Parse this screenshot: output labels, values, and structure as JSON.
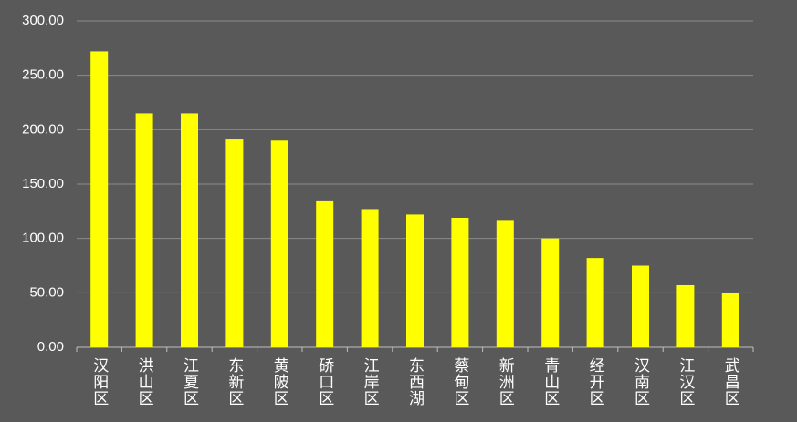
{
  "chart_data": {
    "type": "bar",
    "categories": [
      "汉阳区",
      "洪山区",
      "江夏区",
      "东新区",
      "黄陂区",
      "硚口区",
      "江岸区",
      "东西湖",
      "蔡甸区",
      "新洲区",
      "青山区",
      "经开区",
      "汉南区",
      "江汉区",
      "武昌区"
    ],
    "values": [
      272,
      215,
      215,
      191,
      190,
      135,
      127,
      122,
      119,
      117,
      100,
      82,
      75,
      57,
      50
    ],
    "color": "#ffff00",
    "ylim": [
      0,
      300
    ],
    "yticks": [
      {
        "value": 0,
        "label": "0.00"
      },
      {
        "value": 50,
        "label": "50.00"
      },
      {
        "value": 100,
        "label": "100.00"
      },
      {
        "value": 150,
        "label": "150.00"
      },
      {
        "value": 200,
        "label": "200.00"
      },
      {
        "value": 250,
        "label": "250.00"
      },
      {
        "value": 300,
        "label": "300.00"
      }
    ],
    "grid": true
  }
}
